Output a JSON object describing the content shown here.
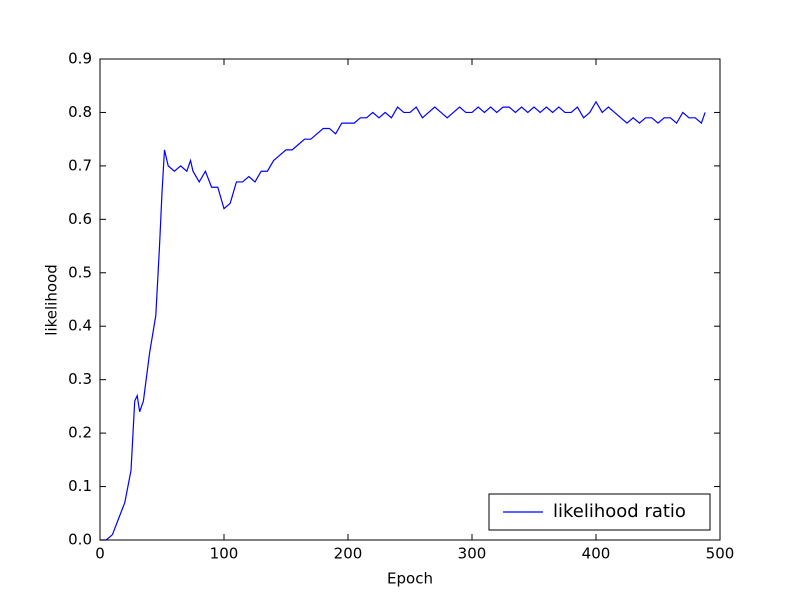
{
  "chart_data": {
    "type": "line",
    "xlabel": "Epoch",
    "ylabel": "likelihood",
    "x": [
      0,
      5,
      10,
      15,
      20,
      25,
      28,
      30,
      32,
      35,
      40,
      45,
      48,
      50,
      52,
      55,
      60,
      65,
      70,
      73,
      75,
      80,
      85,
      90,
      95,
      100,
      105,
      110,
      115,
      120,
      125,
      130,
      135,
      140,
      145,
      150,
      155,
      160,
      165,
      170,
      175,
      180,
      185,
      190,
      195,
      200,
      205,
      210,
      215,
      220,
      225,
      230,
      235,
      240,
      245,
      250,
      255,
      260,
      265,
      270,
      275,
      280,
      285,
      290,
      295,
      300,
      305,
      310,
      315,
      320,
      325,
      330,
      335,
      340,
      345,
      350,
      355,
      360,
      365,
      370,
      375,
      380,
      385,
      390,
      395,
      400,
      405,
      410,
      415,
      420,
      425,
      430,
      435,
      440,
      445,
      450,
      455,
      460,
      465,
      470,
      475,
      480,
      485,
      488
    ],
    "series": [
      {
        "name": "likelihood ratio",
        "color": "#0000ff",
        "values": [
          0.0,
          0.0,
          0.01,
          0.04,
          0.07,
          0.13,
          0.26,
          0.27,
          0.24,
          0.26,
          0.35,
          0.42,
          0.55,
          0.65,
          0.73,
          0.7,
          0.69,
          0.7,
          0.69,
          0.71,
          0.69,
          0.67,
          0.69,
          0.66,
          0.66,
          0.62,
          0.63,
          0.67,
          0.67,
          0.68,
          0.67,
          0.69,
          0.69,
          0.71,
          0.72,
          0.73,
          0.73,
          0.74,
          0.75,
          0.75,
          0.76,
          0.77,
          0.77,
          0.76,
          0.78,
          0.78,
          0.78,
          0.79,
          0.79,
          0.8,
          0.79,
          0.8,
          0.79,
          0.81,
          0.8,
          0.8,
          0.81,
          0.79,
          0.8,
          0.81,
          0.8,
          0.79,
          0.8,
          0.81,
          0.8,
          0.8,
          0.81,
          0.8,
          0.81,
          0.8,
          0.81,
          0.81,
          0.8,
          0.81,
          0.8,
          0.81,
          0.8,
          0.81,
          0.8,
          0.81,
          0.8,
          0.8,
          0.81,
          0.79,
          0.8,
          0.82,
          0.8,
          0.81,
          0.8,
          0.79,
          0.78,
          0.79,
          0.78,
          0.79,
          0.79,
          0.78,
          0.79,
          0.79,
          0.78,
          0.8,
          0.79,
          0.79,
          0.78,
          0.8
        ]
      }
    ],
    "xlim": [
      0,
      500
    ],
    "xticks": [
      0,
      100,
      200,
      300,
      400,
      500
    ],
    "ylim": [
      0,
      0.9
    ],
    "yticks": [
      {
        "value": 0,
        "label": "0.0"
      },
      0.1,
      0.2,
      0.3,
      0.4,
      0.5,
      0.6,
      0.7,
      0.8,
      0.9
    ],
    "legend": "lower right"
  }
}
